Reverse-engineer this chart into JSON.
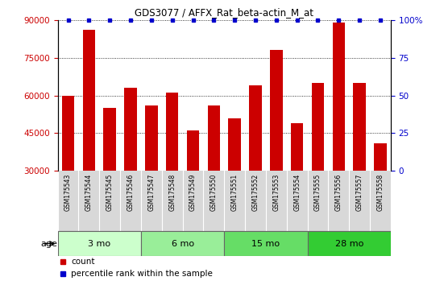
{
  "title": "GDS3077 / AFFX_Rat_beta-actin_M_at",
  "samples": [
    "GSM175543",
    "GSM175544",
    "GSM175545",
    "GSM175546",
    "GSM175547",
    "GSM175548",
    "GSM175549",
    "GSM175550",
    "GSM175551",
    "GSM175552",
    "GSM175553",
    "GSM175554",
    "GSM175555",
    "GSM175556",
    "GSM175557",
    "GSM175558"
  ],
  "counts": [
    60000,
    86000,
    55000,
    63000,
    56000,
    61000,
    46000,
    56000,
    51000,
    64000,
    78000,
    49000,
    65000,
    89000,
    65000,
    41000
  ],
  "percentile_ranks": [
    100,
    100,
    100,
    100,
    100,
    100,
    100,
    100,
    100,
    100,
    100,
    100,
    100,
    100,
    100,
    100
  ],
  "bar_color": "#cc0000",
  "dot_color": "#0000cc",
  "ylim_left": [
    30000,
    90000
  ],
  "ylim_right": [
    0,
    100
  ],
  "yticks_left": [
    30000,
    45000,
    60000,
    75000,
    90000
  ],
  "yticks_right": [
    0,
    25,
    50,
    75,
    100
  ],
  "groups": [
    {
      "label": "3 mo",
      "start": 0,
      "end": 4,
      "color": "#ccffcc"
    },
    {
      "label": "6 mo",
      "start": 4,
      "end": 8,
      "color": "#99ee99"
    },
    {
      "label": "15 mo",
      "start": 8,
      "end": 12,
      "color": "#66dd66"
    },
    {
      "label": "28 mo",
      "start": 12,
      "end": 16,
      "color": "#33cc33"
    }
  ],
  "age_label": "age",
  "legend_count_label": "count",
  "legend_pct_label": "percentile rank within the sample",
  "bg_plot_color": "#ffffff",
  "xtick_bg_color": "#d8d8d8",
  "group_border_color": "#666666"
}
